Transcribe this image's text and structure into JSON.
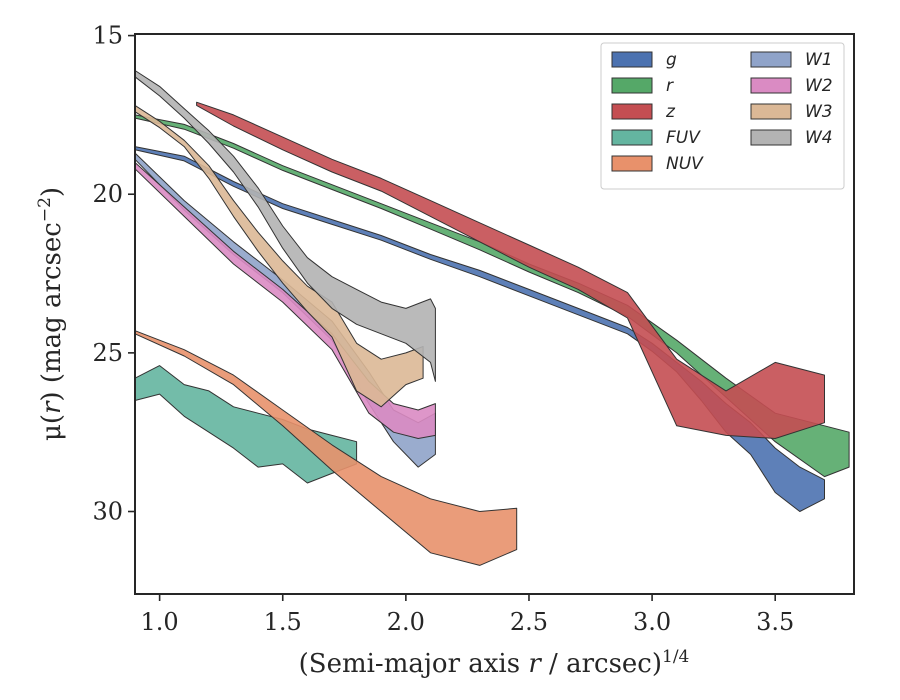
{
  "chart_data": {
    "type": "area",
    "xlabel": "(Semi-major axis r / arcsec)^1/4",
    "xlabel_parts": {
      "pre": "(Semi-major axis ",
      "var": "r",
      "post": " / arcsec)",
      "sup": "1/4"
    },
    "ylabel": "μ(r) (mag arcsec^−2)",
    "ylabel_parts": {
      "pre": "μ(",
      "var": "r",
      "mid": ") (mag arcsec",
      "sup": "−2",
      "post": ")"
    },
    "xlim": [
      0.9,
      3.82
    ],
    "ylim": [
      32.6,
      14.95
    ],
    "y_inverted": true,
    "xticks": [
      1.0,
      1.5,
      2.0,
      2.5,
      3.0,
      3.5
    ],
    "xtick_labels": [
      "1.0",
      "1.5",
      "2.0",
      "2.5",
      "3.0",
      "3.5"
    ],
    "yticks": [
      15,
      20,
      25,
      30
    ],
    "ytick_labels": [
      "15",
      "20",
      "25",
      "30"
    ],
    "grid": false,
    "legend_placement": "top-right",
    "legend_columns": 2,
    "series": [
      {
        "name": "g",
        "color": "#4c72b0",
        "x": [
          0.9,
          1.1,
          1.3,
          1.5,
          1.7,
          1.9,
          2.1,
          2.3,
          2.5,
          2.7,
          2.9,
          3.0,
          3.1,
          3.2,
          3.3,
          3.4,
          3.5,
          3.6,
          3.7
        ],
        "lower": [
          18.5,
          18.8,
          19.6,
          20.3,
          20.8,
          21.3,
          21.9,
          22.4,
          23.0,
          23.6,
          24.2,
          24.7,
          25.3,
          25.9,
          26.6,
          27.2,
          28.0,
          28.6,
          29.0
        ],
        "upper": [
          18.6,
          18.95,
          19.75,
          20.45,
          20.95,
          21.45,
          22.05,
          22.6,
          23.2,
          23.8,
          24.4,
          24.95,
          25.6,
          26.5,
          27.5,
          28.2,
          29.4,
          30.0,
          29.6
        ]
      },
      {
        "name": "r",
        "color": "#55a868",
        "x": [
          0.9,
          1.1,
          1.3,
          1.5,
          1.7,
          1.9,
          2.1,
          2.3,
          2.5,
          2.7,
          2.9,
          3.1,
          3.3,
          3.5,
          3.7,
          3.8
        ],
        "lower": [
          17.5,
          17.8,
          18.4,
          19.1,
          19.7,
          20.3,
          20.9,
          21.5,
          22.2,
          22.8,
          23.5,
          24.6,
          25.8,
          26.9,
          27.3,
          27.5
        ],
        "upper": [
          17.6,
          17.95,
          18.55,
          19.25,
          19.85,
          20.45,
          21.1,
          21.75,
          22.45,
          23.1,
          23.85,
          25.0,
          26.4,
          27.8,
          28.9,
          28.6
        ]
      },
      {
        "name": "z",
        "color": "#c44e52",
        "x": [
          1.15,
          1.3,
          1.5,
          1.7,
          1.9,
          2.1,
          2.3,
          2.5,
          2.7,
          2.9,
          3.1,
          3.3,
          3.5,
          3.7
        ],
        "lower": [
          17.1,
          17.5,
          18.2,
          18.9,
          19.5,
          20.2,
          20.9,
          21.6,
          22.3,
          23.1,
          25.2,
          26.2,
          25.3,
          25.7
        ],
        "upper": [
          17.2,
          17.85,
          18.6,
          19.3,
          19.9,
          20.7,
          21.5,
          22.3,
          23.0,
          23.9,
          27.3,
          27.6,
          27.7,
          27.2
        ]
      },
      {
        "name": "FUV",
        "color": "#64b5a0",
        "x": [
          0.9,
          1.0,
          1.1,
          1.2,
          1.3,
          1.4,
          1.5,
          1.6,
          1.7,
          1.8
        ],
        "lower": [
          25.8,
          25.4,
          26.0,
          26.2,
          26.7,
          26.9,
          27.1,
          27.4,
          27.6,
          27.8
        ],
        "upper": [
          26.5,
          26.3,
          27.0,
          27.5,
          28.0,
          28.6,
          28.5,
          29.1,
          28.8,
          28.5
        ]
      },
      {
        "name": "NUV",
        "color": "#e8916b",
        "x": [
          0.9,
          1.1,
          1.3,
          1.5,
          1.7,
          1.9,
          2.1,
          2.3,
          2.45
        ],
        "lower": [
          24.3,
          24.9,
          25.7,
          26.8,
          27.9,
          28.9,
          29.6,
          30.0,
          29.9
        ],
        "upper": [
          24.4,
          25.1,
          26.0,
          27.3,
          28.7,
          30.0,
          31.3,
          31.7,
          31.2
        ]
      },
      {
        "name": "W1",
        "color": "#8fa3c9",
        "x": [
          0.9,
          1.1,
          1.3,
          1.5,
          1.7,
          1.85,
          1.95,
          2.05,
          2.12
        ],
        "lower": [
          18.7,
          20.2,
          21.5,
          22.7,
          24.0,
          25.6,
          26.8,
          27.2,
          26.9
        ],
        "upper": [
          18.9,
          20.5,
          21.9,
          23.1,
          24.6,
          26.6,
          27.8,
          28.6,
          28.2
        ]
      },
      {
        "name": "W2",
        "color": "#da8bc3",
        "x": [
          0.9,
          1.1,
          1.3,
          1.5,
          1.7,
          1.85,
          1.95,
          2.05,
          2.12
        ],
        "lower": [
          19.0,
          20.4,
          21.8,
          23.0,
          24.4,
          25.9,
          26.6,
          26.8,
          26.6
        ],
        "upper": [
          19.2,
          20.7,
          22.2,
          23.4,
          24.9,
          26.9,
          27.5,
          27.7,
          27.6
        ]
      },
      {
        "name": "W3",
        "color": "#dbb896",
        "x": [
          0.9,
          1.0,
          1.1,
          1.2,
          1.3,
          1.4,
          1.5,
          1.6,
          1.7,
          1.8,
          1.9,
          2.0,
          2.07
        ],
        "lower": [
          17.2,
          17.7,
          18.3,
          19.1,
          20.2,
          21.2,
          22.1,
          22.9,
          23.4,
          24.7,
          25.2,
          25.0,
          24.8
        ],
        "upper": [
          17.4,
          17.9,
          18.5,
          19.5,
          20.7,
          21.8,
          22.8,
          23.7,
          24.5,
          26.2,
          26.7,
          26.0,
          25.8
        ]
      },
      {
        "name": "W4",
        "color": "#b3b3b3",
        "x": [
          0.9,
          1.0,
          1.1,
          1.2,
          1.3,
          1.4,
          1.5,
          1.6,
          1.7,
          1.8,
          1.9,
          2.0,
          2.1,
          2.12
        ],
        "lower": [
          16.1,
          16.6,
          17.3,
          18.0,
          18.8,
          19.8,
          21.0,
          22.0,
          22.6,
          23.0,
          23.4,
          23.6,
          23.3,
          23.6
        ],
        "upper": [
          16.3,
          16.9,
          17.6,
          18.4,
          19.3,
          20.4,
          21.7,
          22.8,
          23.6,
          24.1,
          24.4,
          24.7,
          25.3,
          25.9
        ]
      }
    ]
  }
}
